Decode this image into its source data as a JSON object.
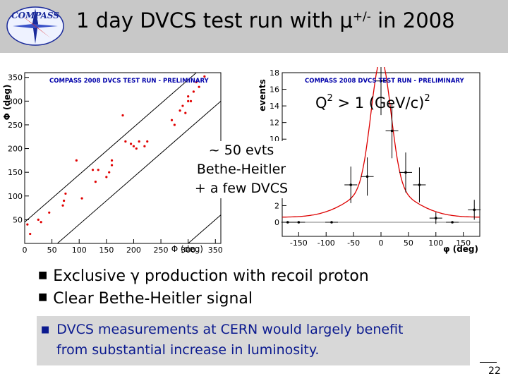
{
  "header": {
    "logo_text": "COMPASS",
    "title_pre": "1 day DVCS test run with ",
    "title_mu": "μ",
    "title_sup": "+/-",
    "title_post": " in 2008"
  },
  "q2_label": {
    "base": "Q",
    "sup1": "2",
    "mid": " > 1 (GeV/c)",
    "sup2": "2"
  },
  "annotation": [
    "~ 50 evts",
    "Bethe-Heitler",
    "+ a few DVCS"
  ],
  "bullets": [
    "Exclusive γ production with recoil proton",
    "Clear Bethe-Heitler signal"
  ],
  "box_text": [
    "DVCS measurements at CERN would largely benefit",
    "from substantial increase in luminosity."
  ],
  "page_number": "22",
  "colors": {
    "header_bg": "#c8c8c8",
    "box_text": "#0b1a8f",
    "fit_curve": "#dd0000",
    "plot_title": "#0000aa"
  },
  "chart_data": [
    {
      "type": "scatter",
      "title": "COMPASS 2008 DVCS TEST RUN - PRELIMINARY",
      "xlabel": "Φ (deg)",
      "ylabel": "Φ (deg)",
      "xlim": [
        0,
        360
      ],
      "ylim": [
        0,
        360
      ],
      "x_ticks": [
        "0",
        "50",
        "100",
        "150",
        "200",
        "250",
        "300",
        "350"
      ],
      "y_ticks": [
        "50",
        "100",
        "150",
        "200",
        "250",
        "300",
        "350"
      ],
      "points": [
        [
          5,
          40
        ],
        [
          10,
          20
        ],
        [
          25,
          50
        ],
        [
          30,
          45
        ],
        [
          45,
          65
        ],
        [
          70,
          80
        ],
        [
          72,
          90
        ],
        [
          75,
          105
        ],
        [
          95,
          175
        ],
        [
          105,
          95
        ],
        [
          125,
          155
        ],
        [
          130,
          130
        ],
        [
          135,
          155
        ],
        [
          150,
          140
        ],
        [
          155,
          150
        ],
        [
          160,
          165
        ],
        [
          160,
          175
        ],
        [
          180,
          270
        ],
        [
          185,
          215
        ],
        [
          195,
          210
        ],
        [
          200,
          205
        ],
        [
          205,
          200
        ],
        [
          210,
          215
        ],
        [
          220,
          205
        ],
        [
          225,
          215
        ],
        [
          270,
          260
        ],
        [
          275,
          250
        ],
        [
          285,
          280
        ],
        [
          290,
          290
        ],
        [
          295,
          275
        ],
        [
          300,
          300
        ],
        [
          300,
          310
        ],
        [
          305,
          300
        ],
        [
          310,
          320
        ],
        [
          315,
          340
        ],
        [
          320,
          330
        ],
        [
          330,
          352
        ]
      ],
      "diagonal_bands": [
        [
          -60,
          0
        ],
        [
          45,
          0
        ]
      ]
    },
    {
      "type": "line",
      "title": "COMPASS 2008 DVCS TEST RUN - PRELIMINARY",
      "xlabel": "φ (deg)",
      "ylabel": "events",
      "xlim": [
        -180,
        180
      ],
      "ylim": [
        0,
        18
      ],
      "x_ticks": [
        "-150",
        "-100",
        "-50",
        "0",
        "50",
        "100",
        "150"
      ],
      "y_ticks": [
        "0",
        "2",
        "10",
        "12",
        "14",
        "16",
        "18"
      ],
      "bins": [
        {
          "x": -170,
          "y": 0,
          "err": 0
        },
        {
          "x": -150,
          "y": 0,
          "err": 0
        },
        {
          "x": -90,
          "y": 0,
          "err": 0
        },
        {
          "x": -55,
          "y": 4.5,
          "err": 2.2
        },
        {
          "x": -25,
          "y": 5.5,
          "err": 2.3
        },
        {
          "x": 0,
          "y": 17,
          "err": 4.1
        },
        {
          "x": 20,
          "y": 11,
          "err": 3.3
        },
        {
          "x": 45,
          "y": 6,
          "err": 2.4
        },
        {
          "x": 70,
          "y": 4.5,
          "err": 2.1
        },
        {
          "x": 100,
          "y": 0.5,
          "err": 0.7
        },
        {
          "x": 130,
          "y": 0,
          "err": 0
        },
        {
          "x": 170,
          "y": 1.5,
          "err": 1.2
        }
      ],
      "fit_curve": "Bethe-Heitler peak centered at 0"
    }
  ]
}
